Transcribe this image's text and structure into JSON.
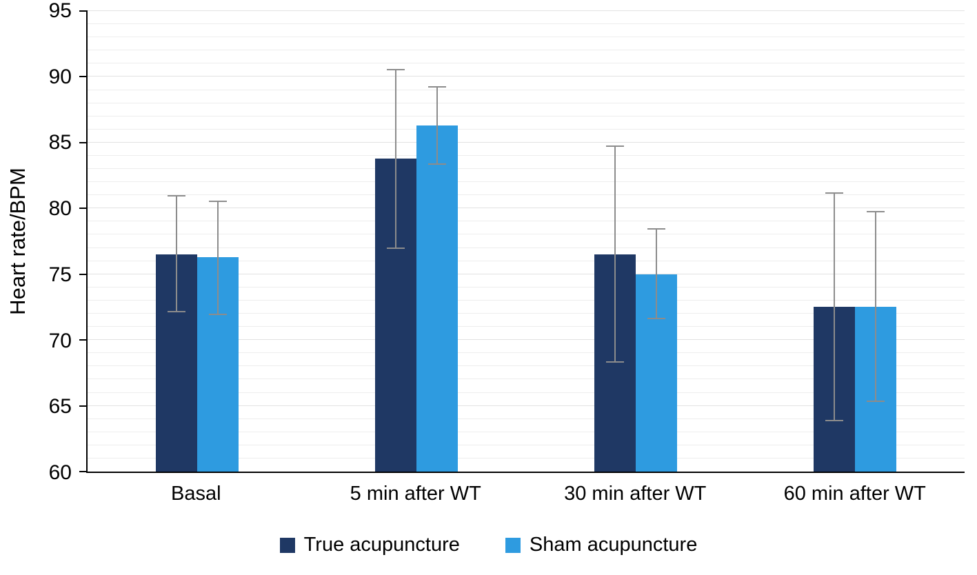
{
  "chart_data": {
    "type": "bar",
    "title": "",
    "xlabel": "",
    "ylabel": "Heart rate/BPM",
    "ylim": [
      60,
      95
    ],
    "ytick_step": 5,
    "minor_grid_step": 1,
    "grid": true,
    "legend_position": "bottom",
    "yticks": [
      60,
      65,
      70,
      75,
      80,
      85,
      90,
      95
    ],
    "categories": [
      "Basal",
      "5 min after WT",
      "30 min after WT",
      "60 min after WT"
    ],
    "series": [
      {
        "name": "True acupuncture",
        "color": "#1f3864",
        "values": [
          76.5,
          83.8,
          76.5,
          72.5
        ],
        "error_low": [
          72.1,
          76.9,
          68.3,
          63.8
        ],
        "error_high": [
          81.0,
          90.6,
          84.8,
          81.2
        ]
      },
      {
        "name": "Sham acupuncture",
        "color": "#2e9be0",
        "values": [
          76.3,
          86.3,
          75.0,
          72.5
        ],
        "error_low": [
          71.9,
          83.3,
          71.6,
          65.3
        ],
        "error_high": [
          80.6,
          89.3,
          78.5,
          79.8
        ]
      }
    ],
    "error_bar_color": "#8c8c8c",
    "axis_color": "#000000",
    "gridline_color": "#ededed"
  }
}
